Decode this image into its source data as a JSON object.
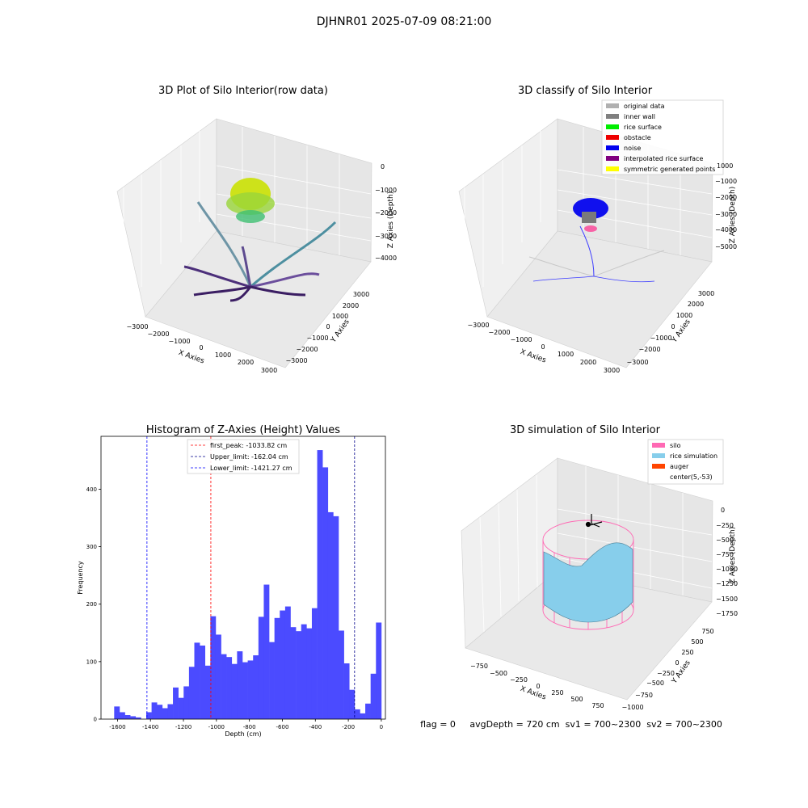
{
  "suptitle": "DJHNR01 2025-07-09 08:21:00",
  "status_text": "flag = 0     avgDepth = 720 cm  sv1 = 700~2300  sv2 = 700~2300",
  "chart_data": [
    {
      "type": "scatter3d",
      "title": "3D Plot of Silo Interior(row data)",
      "xlabel": "X Axies",
      "ylabel": "Y Axies",
      "zlabel": "Z Axies (Depth)",
      "xticks": [
        "−3000",
        "−2000",
        "−1000",
        "0",
        "1000",
        "2000",
        "3000"
      ],
      "yticks": [
        "3000",
        "2000",
        "1000",
        "0",
        "−1000",
        "−2000",
        "−3000"
      ],
      "zticks": [
        "0",
        "−1000",
        "−2000",
        "−3000",
        "−4000"
      ],
      "colormap": "viridis"
    },
    {
      "type": "scatter3d",
      "title": "3D classify of Silo Interior",
      "xlabel": "X Axies",
      "ylabel": "Y Axies",
      "zlabel": "Z Axies (Depth)",
      "xticks": [
        "−3000",
        "−2000",
        "−1000",
        "0",
        "1000",
        "2000",
        "3000"
      ],
      "yticks": [
        "3000",
        "2000",
        "1000",
        "0",
        "−1000",
        "−2000",
        "−3000"
      ],
      "zticks": [
        "0",
        "−1000",
        "−2000",
        "−3000",
        "−4000",
        "−5000"
      ],
      "zticks_note": "",
      "legend": [
        {
          "label": "original data",
          "color": "#b0b0b0"
        },
        {
          "label": "inner wall",
          "color": "#808080"
        },
        {
          "label": "rice surface",
          "color": "#00ee00"
        },
        {
          "label": "obstacle",
          "color": "#ee0000"
        },
        {
          "label": "noise",
          "color": "#0000ee"
        },
        {
          "label": "interpolated rice surface",
          "color": "#800080"
        },
        {
          "label": "symmetric generated points",
          "color": "#ffff00"
        }
      ],
      "legend_position": "top-right"
    },
    {
      "type": "histogram",
      "title": "Histogram of Z-Axies (Height) Values",
      "xlabel": "Depth (cm)",
      "ylabel": "Frequency",
      "xlim": [
        -1700,
        25
      ],
      "ylim": [
        0,
        492
      ],
      "xticks": [
        -1600,
        -1400,
        -1200,
        -1000,
        -800,
        -600,
        -400,
        -200,
        0
      ],
      "yticks": [
        0,
        100,
        200,
        300,
        400
      ],
      "bar_color": "#4b4bff",
      "bin_width": 32.4,
      "bin_start": -1620,
      "counts": [
        22,
        12,
        7,
        5,
        3,
        0,
        12,
        29,
        25,
        19,
        26,
        55,
        37,
        57,
        91,
        133,
        128,
        93,
        179,
        147,
        113,
        108,
        96,
        118,
        99,
        102,
        111,
        178,
        234,
        134,
        176,
        189,
        196,
        160,
        153,
        165,
        158,
        193,
        468,
        438,
        360,
        353,
        154,
        97,
        51,
        17,
        10,
        27,
        79,
        168
      ],
      "lines": [
        {
          "label": "first_peak: -1033.82 cm",
          "x": -1033.82,
          "color": "#ff0000"
        },
        {
          "label": "Upper_limit: -162.04 cm",
          "x": -162.04,
          "color": "#00008b"
        },
        {
          "label": "Lower_limit: -1421.27 cm",
          "x": -1421.27,
          "color": "#0000ff"
        }
      ],
      "legend_position": "top-center"
    },
    {
      "type": "surface3d",
      "title": "3D simulation of Silo Interior",
      "xlabel": "X Axies",
      "ylabel": "Y Axies",
      "zlabel": "Z Axies (Depth)",
      "xticks": [
        "−750",
        "−500",
        "−250",
        "0",
        "250",
        "500",
        "750"
      ],
      "yticks": [
        "750",
        "500",
        "250",
        "0",
        "−250",
        "−500",
        "−750",
        "−1000"
      ],
      "zticks": [
        "0",
        "−250",
        "−500",
        "−750",
        "−1000",
        "−1250",
        "−1500",
        "−1750"
      ],
      "legend": [
        {
          "label": "silo",
          "color": "#ff69b4"
        },
        {
          "label": "rice simulation",
          "color": "#87ceeb"
        },
        {
          "label": "auger",
          "color": "#ff4500"
        },
        {
          "label": "center(5,-53)",
          "color": "#ffffff"
        }
      ],
      "legend_position": "top-right"
    }
  ]
}
